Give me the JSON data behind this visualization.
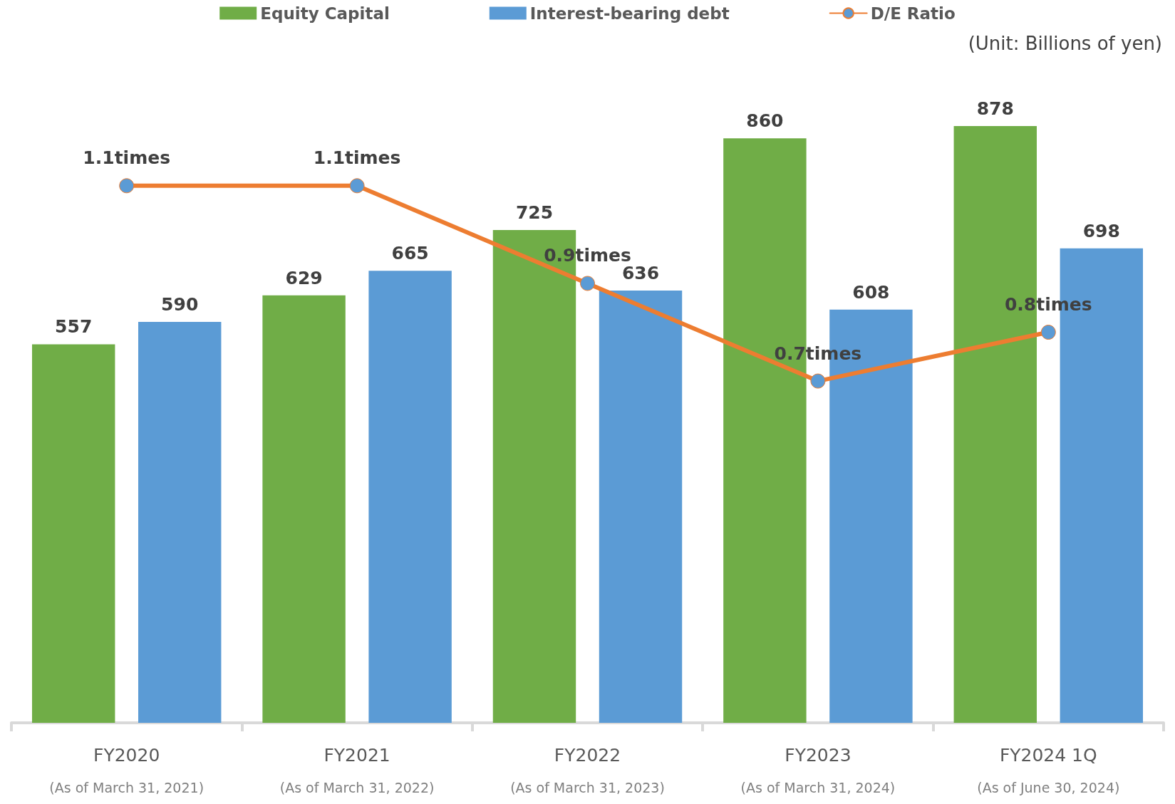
{
  "chart_data": {
    "type": "bar",
    "categories": [
      "FY2020\n(As of March 31, 2021)",
      "FY2021\n(As of March 31, 2022)",
      "FY2022\n(As of March 31, 2023)",
      "FY2023\n(As of March 31, 2024)",
      "FY2024 1Q\n(As of June 30, 2024)"
    ],
    "series": [
      {
        "name": "Equity Capital",
        "color": "#70ad47",
        "values": [
          557,
          629,
          725,
          860,
          878
        ]
      },
      {
        "name": "Interest-bearing debt",
        "color": "#5b9bd5",
        "values": [
          590,
          665,
          636,
          608,
          698
        ]
      },
      {
        "name": "D/E Ratio",
        "type": "line",
        "axis": "y2",
        "color": "#ed7d31",
        "marker": "circle",
        "values": [
          1.1,
          1.1,
          0.9,
          0.7,
          0.8
        ],
        "value_labels": [
          "1.1times",
          "1.1times",
          "0.9times",
          "0.7times",
          "0.8times"
        ]
      }
    ],
    "data_labels": true,
    "legend": "top",
    "grid": false,
    "annotations": [
      "(Unit: Billions of yen)"
    ]
  }
}
